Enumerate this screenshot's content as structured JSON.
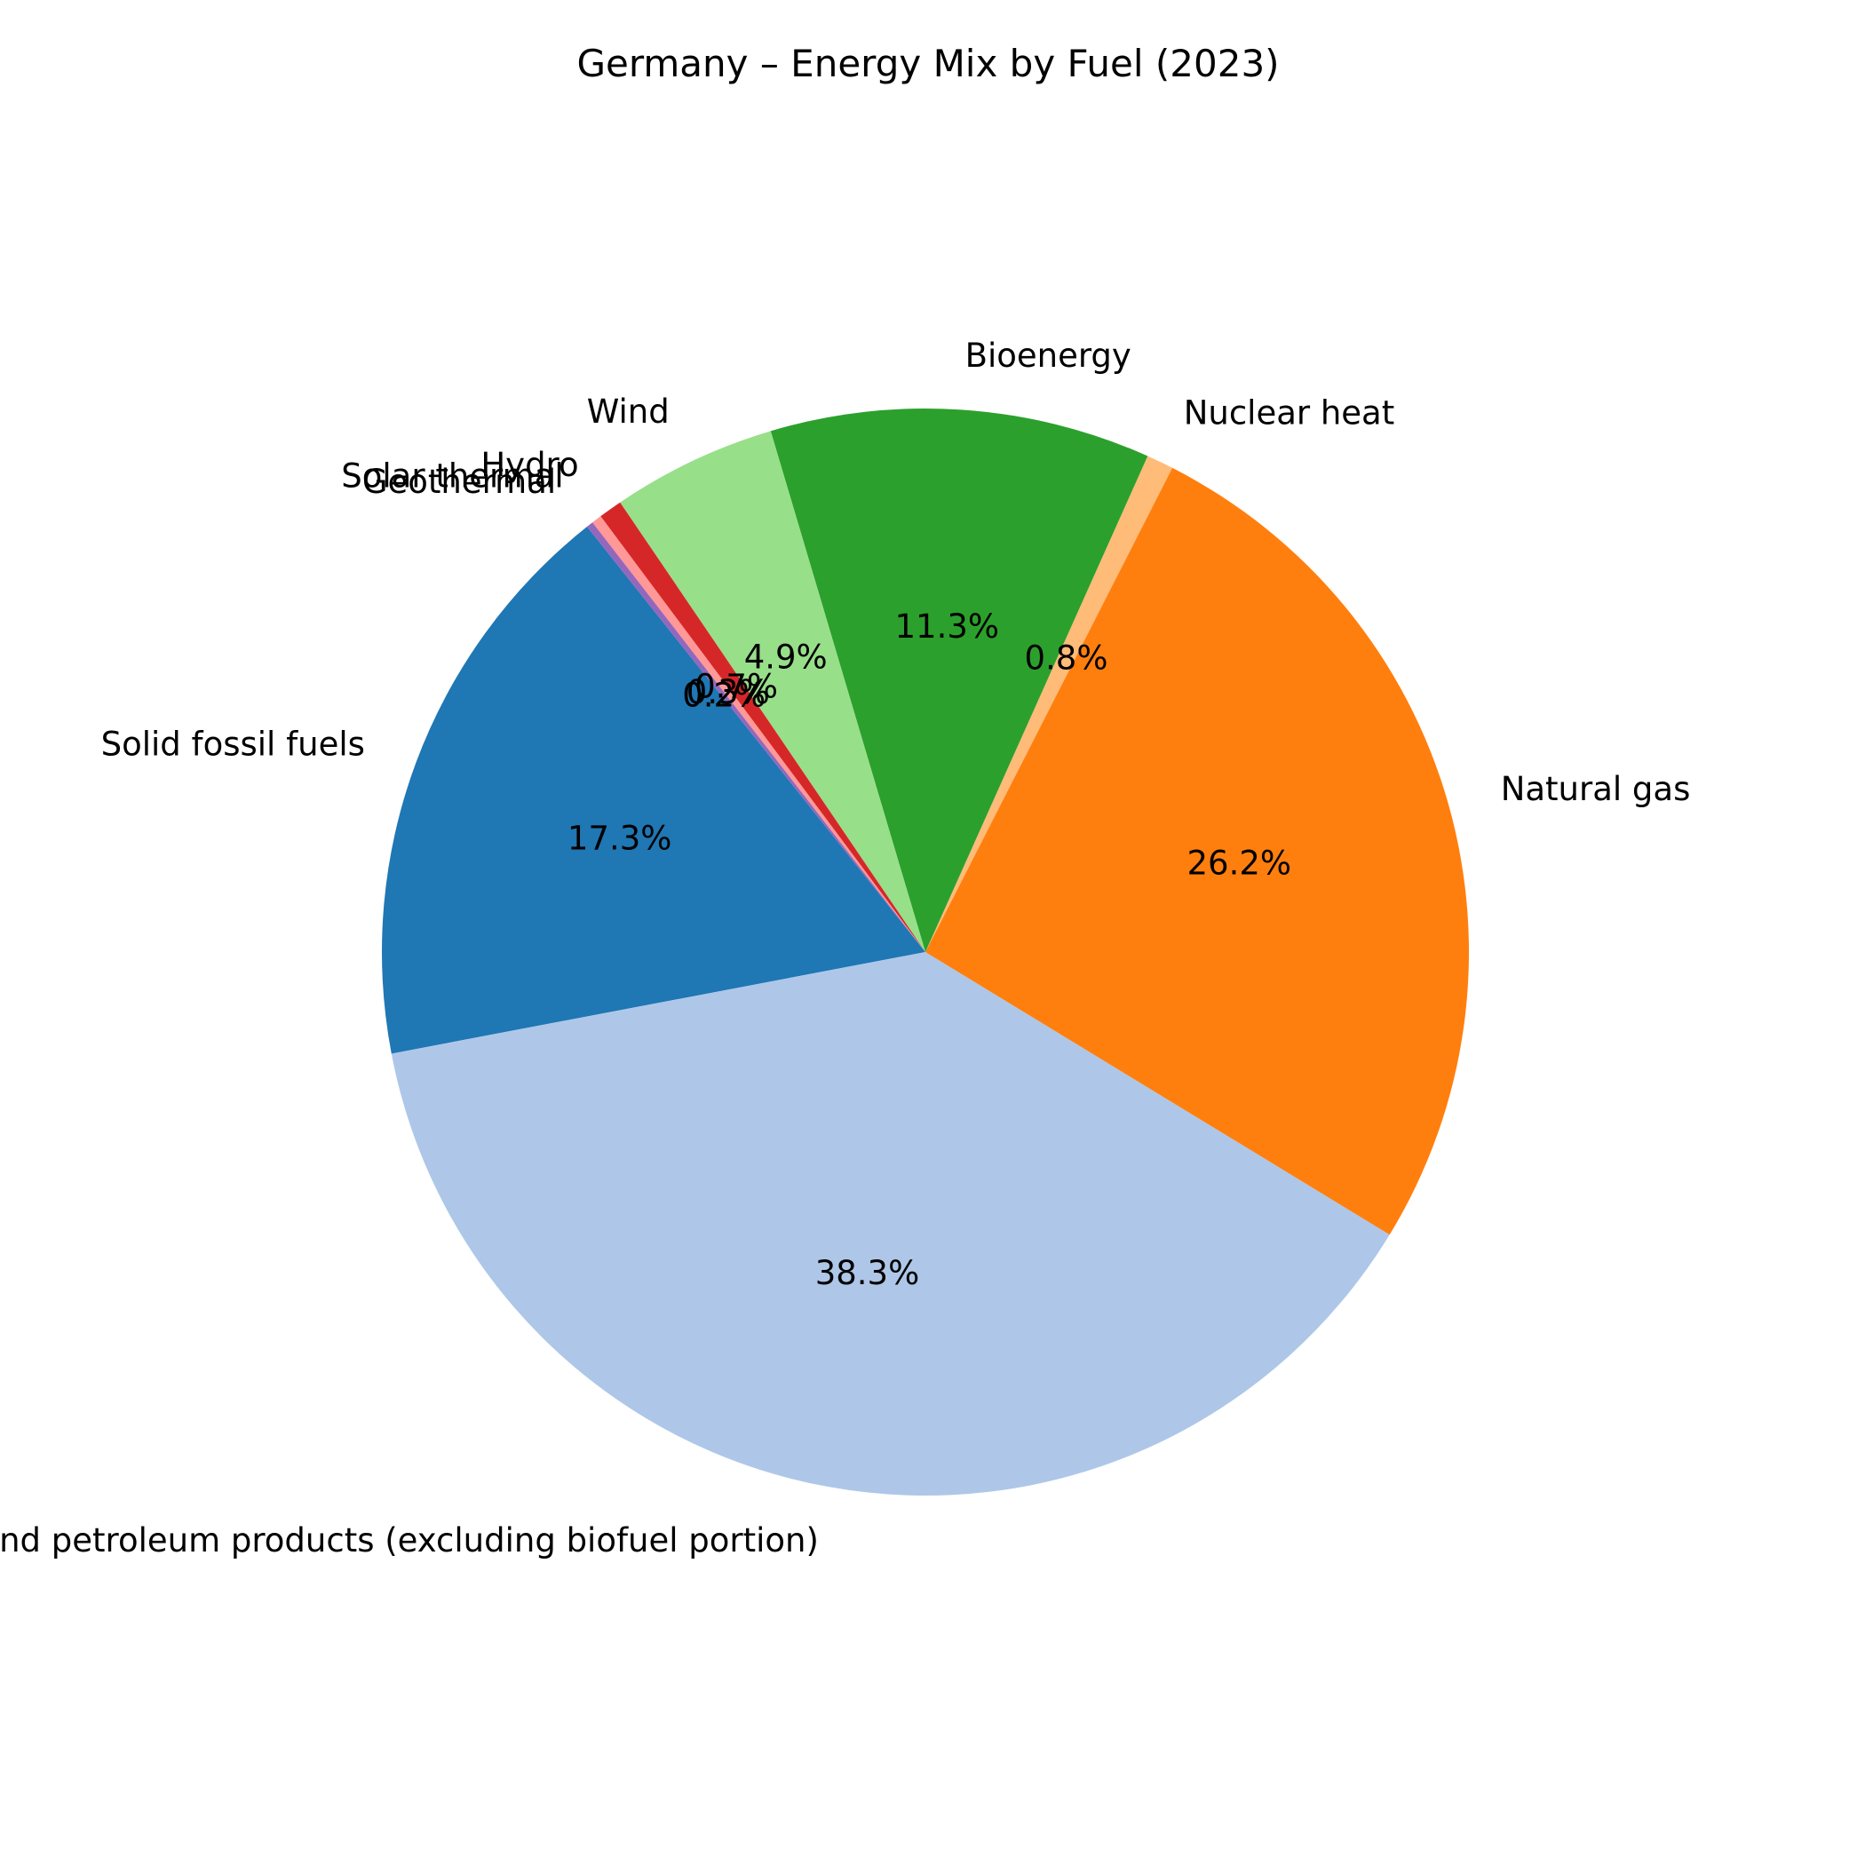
{
  "chart_data": {
    "type": "pie",
    "title": "Germany – Energy Mix by Fuel (2023)",
    "labels": [
      "Solid fossil fuels",
      "Oil and petroleum products (excluding biofuel portion)",
      "Natural gas",
      "Nuclear heat",
      "Bioenergy",
      "Wind",
      "Hydro",
      "Solar thermal",
      "Geothermal"
    ],
    "values": [
      17.3,
      38.3,
      26.2,
      0.8,
      11.3,
      4.9,
      0.7,
      0.3,
      0.2
    ],
    "value_labels": [
      "17.3%",
      "38.3%",
      "26.2%",
      "0.8%",
      "11.3%",
      "4.9%",
      "0.7%",
      "0.3%",
      "0.2%"
    ],
    "colors": [
      "#1f77b4",
      "#aec7e8",
      "#ff7f0e",
      "#ffbb78",
      "#2ca02c",
      "#98df8a",
      "#d62728",
      "#ff9896",
      "#9467bd"
    ],
    "start_angle_deg": 128.5,
    "direction": "counterclockwise",
    "legend": "none"
  }
}
